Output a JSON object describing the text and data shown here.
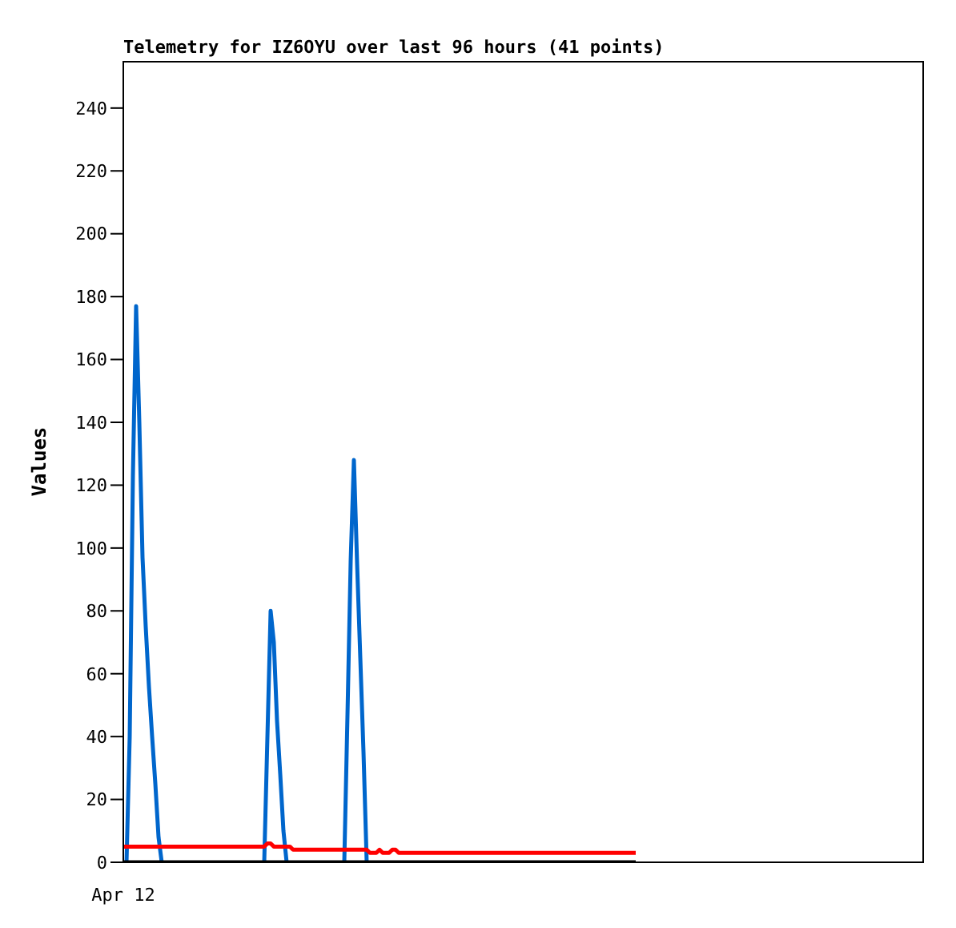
{
  "chart_data": {
    "type": "line",
    "title": "Telemetry for IZ6OYU over last 96 hours (41 points)",
    "ylabel": "Values",
    "ylim": [
      0,
      255
    ],
    "yticks": [
      0,
      20,
      40,
      60,
      80,
      100,
      120,
      140,
      160,
      180,
      200,
      220,
      240
    ],
    "grid": false,
    "legend": false,
    "marker": "none",
    "line_style": "solid",
    "categories": [
      "Apr 12",
      null,
      null,
      null,
      null,
      null,
      null,
      null,
      null,
      null,
      null,
      null,
      null,
      null,
      null,
      null,
      null,
      null,
      null,
      null,
      null,
      null,
      null,
      null,
      null,
      null,
      null,
      null,
      null,
      null,
      null,
      null,
      null,
      null,
      null,
      null,
      null,
      null,
      null,
      null,
      null,
      null,
      null,
      null,
      null,
      null,
      null,
      null,
      null,
      null,
      null,
      null,
      null,
      null,
      null,
      null,
      null,
      null,
      null,
      null,
      null,
      null,
      null,
      null,
      null,
      null,
      null,
      null,
      null,
      null,
      null,
      null,
      null,
      null,
      null,
      null,
      null,
      null,
      null,
      null,
      null,
      null,
      null,
      null,
      null,
      null,
      null,
      null,
      null,
      null,
      null,
      null,
      null,
      null,
      null,
      null,
      null,
      null,
      null,
      null,
      null,
      null,
      null,
      null,
      null,
      null,
      null,
      null,
      null,
      null,
      null,
      null,
      null,
      null,
      null,
      null,
      null,
      null,
      null,
      null,
      null,
      null,
      null,
      null,
      null,
      null,
      null,
      null,
      null,
      null,
      null,
      null,
      null,
      null,
      null,
      null,
      null,
      null,
      null,
      null,
      null,
      null,
      null,
      null,
      null,
      null,
      null,
      null,
      null,
      null,
      null,
      null,
      null,
      null,
      null,
      null,
      null,
      null,
      null,
      null,
      null,
      null,
      null,
      null,
      null,
      null,
      null,
      null,
      null,
      null,
      null,
      null,
      null,
      null,
      null,
      null,
      null,
      null,
      null,
      null,
      null,
      null,
      null,
      null,
      null,
      null,
      null,
      null,
      null,
      null,
      null,
      null,
      null,
      null,
      null,
      null,
      null,
      null,
      null,
      null,
      null,
      null,
      null,
      null,
      null,
      null,
      null,
      null,
      null,
      null,
      null,
      null,
      null,
      null,
      null,
      null,
      null,
      null,
      null,
      null,
      null,
      null,
      null,
      null,
      null,
      null,
      null,
      null,
      null,
      null,
      null,
      null,
      null,
      null,
      null,
      null,
      null,
      null,
      null,
      null,
      null,
      null,
      null,
      null,
      null,
      null,
      null,
      null,
      null,
      null,
      null
    ],
    "series": [
      {
        "color": "#0066cc",
        "values": [
          null,
          0,
          40,
          123,
          177,
          140,
          97,
          75,
          56,
          40,
          25,
          8,
          0,
          null,
          null,
          null,
          null,
          null,
          null,
          null,
          null,
          null,
          null,
          null,
          null,
          null,
          null,
          null,
          null,
          null,
          null,
          null,
          null,
          null,
          null,
          null,
          null,
          null,
          null,
          null,
          null,
          null,
          null,
          null,
          0,
          40,
          80,
          70,
          45,
          28,
          10,
          0,
          null,
          null,
          null,
          null,
          null,
          null,
          null,
          null,
          null,
          null,
          null,
          null,
          null,
          null,
          null,
          null,
          null,
          0,
          47,
          96,
          128,
          95,
          65,
          35,
          0,
          null,
          null,
          null,
          null,
          null,
          null,
          null,
          null,
          null,
          null,
          null,
          null,
          null,
          null,
          null,
          null,
          null,
          null,
          null,
          null,
          null,
          null,
          null,
          null,
          null,
          null,
          null,
          null,
          null,
          null,
          null,
          null,
          null,
          null,
          null,
          null,
          null,
          null,
          null,
          null,
          null,
          null,
          null,
          null,
          null,
          null,
          null,
          null,
          null,
          null,
          null,
          null,
          null,
          null,
          null,
          null,
          null,
          null,
          null,
          null,
          null,
          null,
          null,
          null,
          null,
          null,
          null,
          null,
          null,
          null,
          null,
          null,
          null,
          null,
          null,
          null,
          null,
          null,
          null,
          null,
          null,
          null,
          null,
          null,
          null,
          null,
          null,
          null,
          null,
          null,
          null,
          null,
          null,
          null,
          null,
          null,
          null,
          null,
          null,
          null,
          null,
          null,
          null,
          null,
          null,
          null,
          null,
          null,
          null,
          null,
          null,
          null,
          null,
          null,
          null,
          null,
          null,
          null,
          null,
          null,
          null,
          null,
          null,
          null,
          null,
          null,
          null,
          null,
          null,
          null,
          null,
          null,
          null,
          null,
          null,
          null,
          null,
          null,
          null,
          null,
          null,
          null,
          null,
          null,
          null,
          null,
          null,
          null,
          null,
          null,
          null,
          null,
          null,
          null,
          null,
          null,
          null,
          null,
          null,
          null,
          null,
          null,
          null,
          null,
          null,
          null,
          null,
          null,
          null,
          null,
          null,
          null,
          null,
          null
        ]
      },
      {
        "color": "#ff0000",
        "values": [
          5,
          5,
          5,
          5,
          5,
          5,
          5,
          5,
          5,
          5,
          5,
          5,
          5,
          5,
          5,
          5,
          5,
          5,
          5,
          5,
          5,
          5,
          5,
          5,
          5,
          5,
          5,
          5,
          5,
          5,
          5,
          5,
          5,
          5,
          5,
          5,
          5,
          5,
          5,
          5,
          5,
          5,
          5,
          5,
          5,
          6,
          6,
          5,
          5,
          5,
          5,
          5,
          5,
          4,
          4,
          4,
          4,
          4,
          4,
          4,
          4,
          4,
          4,
          4,
          4,
          4,
          4,
          4,
          4,
          4,
          4,
          4,
          4,
          4,
          4,
          4,
          4,
          3,
          3,
          3,
          4,
          3,
          3,
          3,
          4,
          4,
          3,
          3,
          3,
          3,
          3,
          3,
          3,
          3,
          3,
          3,
          3,
          3,
          3,
          3,
          3,
          3,
          3,
          3,
          3,
          3,
          3,
          3,
          3,
          3,
          3,
          3,
          3,
          3,
          3,
          3,
          3,
          3,
          3,
          3,
          3,
          3,
          3,
          3,
          3,
          3,
          3,
          3,
          3,
          3,
          3,
          3,
          3,
          3,
          3,
          3,
          3,
          3,
          3,
          3,
          3,
          3,
          3,
          3,
          3,
          3,
          3,
          3,
          3,
          3,
          3,
          3,
          3,
          3,
          3,
          3,
          3,
          3,
          3,
          3,
          3,
          null,
          null,
          null,
          null,
          null,
          null,
          null,
          null,
          null,
          null,
          null,
          null,
          null,
          null,
          null,
          null,
          null,
          null,
          null,
          null,
          null,
          null,
          null,
          null,
          null,
          null,
          null,
          null,
          null,
          null,
          null,
          null,
          null,
          null,
          null,
          null,
          null,
          null,
          null,
          null,
          null,
          null,
          null,
          null,
          null,
          null,
          null,
          null,
          null,
          null,
          null,
          null,
          null,
          null,
          null,
          null,
          null,
          null,
          null,
          null,
          null,
          null,
          null,
          null,
          null,
          null,
          null,
          null,
          null,
          null,
          null,
          null,
          null,
          null,
          null,
          null,
          null,
          null,
          null,
          null,
          null,
          null,
          null,
          null,
          null,
          null,
          null,
          null,
          null,
          null
        ]
      },
      {
        "color": "#000000",
        "values": [
          0,
          0,
          0,
          0,
          0,
          0,
          0,
          0,
          0,
          0,
          0,
          0,
          0,
          0,
          0,
          0,
          0,
          0,
          0,
          0,
          0,
          0,
          0,
          0,
          0,
          0,
          0,
          0,
          0,
          0,
          0,
          0,
          0,
          0,
          0,
          0,
          0,
          0,
          0,
          0,
          0,
          0,
          0,
          0,
          0,
          0,
          0,
          0,
          0,
          0,
          0,
          0,
          0,
          0,
          0,
          0,
          0,
          0,
          0,
          0,
          0,
          0,
          0,
          0,
          0,
          0,
          0,
          0,
          0,
          0,
          0,
          0,
          0,
          0,
          0,
          0,
          0,
          0,
          0,
          0,
          0,
          0,
          0,
          0,
          0,
          0,
          0,
          0,
          0,
          0,
          0,
          0,
          0,
          0,
          0,
          0,
          0,
          0,
          0,
          0,
          0,
          0,
          0,
          0,
          0,
          0,
          0,
          0,
          0,
          0,
          0,
          0,
          0,
          0,
          0,
          0,
          0,
          0,
          0,
          0,
          0,
          0,
          0,
          0,
          0,
          0,
          0,
          0,
          0,
          0,
          0,
          0,
          0,
          0,
          0,
          0,
          0,
          0,
          0,
          0,
          0,
          0,
          0,
          0,
          0,
          0,
          0,
          0,
          0,
          0,
          0,
          0,
          0,
          0,
          0,
          0,
          0,
          0,
          0,
          0,
          0,
          null,
          null,
          null,
          null,
          null,
          null,
          null,
          null,
          null,
          null,
          null,
          null,
          null,
          null,
          null,
          null,
          null,
          null,
          null,
          null,
          null,
          null,
          null,
          null,
          null,
          null,
          null,
          null,
          null,
          null,
          null,
          null,
          null,
          null,
          null,
          null,
          null,
          null,
          null,
          null,
          null,
          null,
          null,
          null,
          null,
          null,
          null,
          null,
          null,
          null,
          null,
          null,
          null,
          null,
          null,
          null,
          null,
          null,
          null,
          null,
          null,
          null,
          null,
          null,
          null,
          null,
          null,
          null,
          null,
          null,
          null,
          null,
          null,
          null,
          null,
          null,
          null,
          null,
          null,
          null,
          null,
          null,
          null,
          null,
          null,
          null,
          null,
          null,
          null,
          null
        ]
      }
    ]
  }
}
